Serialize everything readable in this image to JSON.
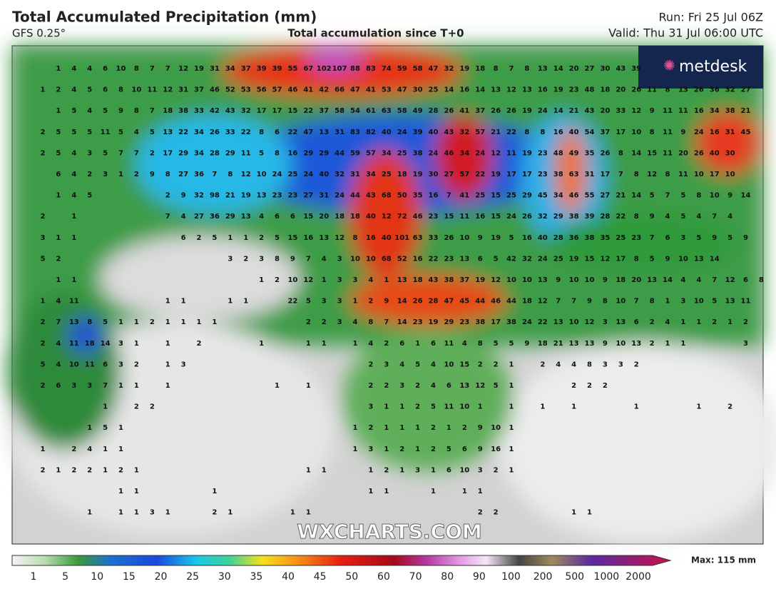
{
  "header": {
    "title": "Total Accumulated Precipitation (mm)",
    "model": "GFS 0.25°",
    "subtitle": "Total accumulation since T+0",
    "run": "Run: Fri 25 Jul 06Z",
    "valid": "Valid: Thu 31 Jul 06:00 UTC"
  },
  "logo": "metdesk",
  "watermark": "WXCHARTS.COM",
  "map_values": [
    [
      null,
      1,
      4,
      4,
      6,
      10,
      8,
      7,
      7,
      12,
      19,
      31,
      34,
      37,
      39,
      39,
      55,
      67,
      102,
      107,
      88,
      83,
      74,
      59,
      58,
      47,
      32,
      19,
      18,
      8,
      7,
      8,
      13,
      14,
      20,
      27,
      30,
      43,
      39
    ],
    [
      1,
      2,
      4,
      5,
      6,
      8,
      10,
      11,
      12,
      31,
      37,
      46,
      52,
      53,
      56,
      57,
      46,
      41,
      42,
      66,
      47,
      41,
      53,
      47,
      30,
      25,
      14,
      16,
      14,
      13,
      12,
      13,
      16,
      19,
      23,
      48,
      18,
      20,
      26,
      11,
      8,
      13,
      26,
      36,
      32,
      27
    ],
    [
      null,
      1,
      5,
      4,
      5,
      9,
      8,
      7,
      18,
      38,
      33,
      42,
      43,
      32,
      17,
      17,
      15,
      22,
      37,
      58,
      54,
      61,
      63,
      58,
      49,
      28,
      26,
      41,
      37,
      26,
      26,
      19,
      24,
      14,
      21,
      43,
      20,
      33,
      12,
      9,
      11,
      11,
      16,
      34,
      38,
      21
    ],
    [
      2,
      5,
      5,
      5,
      11,
      5,
      4,
      5,
      13,
      22,
      34,
      26,
      33,
      22,
      8,
      6,
      22,
      47,
      13,
      31,
      83,
      82,
      40,
      24,
      39,
      40,
      43,
      32,
      57,
      21,
      22,
      8,
      8,
      16,
      40,
      54,
      37,
      17,
      10,
      8,
      11,
      9,
      24,
      16,
      31,
      45
    ],
    [
      2,
      5,
      4,
      3,
      5,
      7,
      7,
      2,
      17,
      29,
      34,
      28,
      29,
      11,
      5,
      8,
      16,
      29,
      29,
      44,
      59,
      57,
      34,
      25,
      38,
      24,
      46,
      34,
      24,
      12,
      11,
      19,
      23,
      48,
      49,
      35,
      26,
      8,
      14,
      15,
      11,
      20,
      26,
      40,
      30
    ],
    [
      null,
      6,
      4,
      2,
      3,
      1,
      2,
      9,
      8,
      27,
      36,
      7,
      8,
      12,
      10,
      24,
      25,
      24,
      40,
      32,
      31,
      34,
      25,
      18,
      19,
      30,
      27,
      57,
      22,
      19,
      17,
      17,
      23,
      38,
      63,
      31,
      17,
      7,
      8,
      12,
      8,
      11,
      10,
      17,
      10
    ],
    [
      null,
      1,
      4,
      5,
      null,
      null,
      null,
      null,
      2,
      9,
      32,
      98,
      21,
      19,
      13,
      23,
      23,
      27,
      31,
      24,
      44,
      43,
      68,
      50,
      35,
      16,
      7,
      41,
      25,
      15,
      25,
      29,
      45,
      34,
      46,
      55,
      27,
      21,
      14,
      5,
      7,
      5,
      8,
      10,
      9,
      14
    ],
    [
      2,
      null,
      1,
      null,
      null,
      null,
      null,
      null,
      7,
      4,
      27,
      36,
      29,
      13,
      4,
      6,
      6,
      15,
      20,
      18,
      18,
      40,
      12,
      72,
      46,
      23,
      15,
      11,
      16,
      15,
      24,
      26,
      32,
      29,
      38,
      39,
      28,
      22,
      8,
      9,
      4,
      5,
      4,
      7,
      4
    ],
    [
      3,
      1,
      1,
      null,
      null,
      null,
      null,
      null,
      null,
      6,
      2,
      5,
      1,
      1,
      2,
      5,
      15,
      16,
      13,
      12,
      8,
      16,
      40,
      101,
      63,
      33,
      26,
      10,
      9,
      19,
      5,
      16,
      40,
      28,
      36,
      38,
      35,
      25,
      23,
      7,
      6,
      3,
      5,
      9,
      5,
      9
    ],
    [
      5,
      2,
      null,
      null,
      null,
      null,
      null,
      null,
      null,
      null,
      null,
      null,
      3,
      2,
      3,
      8,
      9,
      7,
      4,
      3,
      10,
      10,
      68,
      52,
      16,
      22,
      23,
      13,
      6,
      5,
      42,
      32,
      24,
      25,
      19,
      15,
      12,
      17,
      8,
      5,
      9,
      10,
      13,
      14
    ],
    [
      null,
      1,
      1,
      null,
      null,
      null,
      null,
      null,
      null,
      null,
      null,
      null,
      null,
      null,
      1,
      2,
      10,
      12,
      1,
      3,
      3,
      4,
      1,
      13,
      18,
      43,
      38,
      37,
      19,
      12,
      10,
      10,
      13,
      9,
      10,
      10,
      9,
      18,
      20,
      13,
      14,
      4,
      4,
      7,
      12,
      6,
      8
    ],
    [
      1,
      4,
      11,
      null,
      null,
      null,
      null,
      null,
      1,
      1,
      null,
      null,
      1,
      1,
      null,
      null,
      22,
      5,
      3,
      3,
      1,
      2,
      9,
      14,
      26,
      28,
      47,
      45,
      44,
      46,
      44,
      18,
      12,
      7,
      7,
      9,
      8,
      10,
      7,
      8,
      1,
      3,
      10,
      5,
      13,
      11
    ],
    [
      2,
      7,
      13,
      8,
      5,
      1,
      1,
      2,
      1,
      1,
      1,
      1,
      null,
      null,
      null,
      null,
      null,
      2,
      2,
      3,
      4,
      8,
      7,
      14,
      23,
      19,
      29,
      23,
      38,
      17,
      38,
      24,
      22,
      13,
      10,
      12,
      3,
      13,
      6,
      2,
      4,
      1,
      1,
      2,
      1,
      2
    ],
    [
      2,
      4,
      11,
      18,
      14,
      3,
      1,
      null,
      1,
      null,
      2,
      null,
      null,
      null,
      1,
      null,
      null,
      1,
      1,
      null,
      1,
      4,
      2,
      6,
      1,
      6,
      11,
      4,
      8,
      5,
      5,
      9,
      18,
      21,
      13,
      13,
      9,
      10,
      13,
      2,
      1,
      1,
      null,
      null,
      null,
      3
    ],
    [
      5,
      4,
      10,
      11,
      6,
      3,
      2,
      null,
      1,
      3,
      null,
      null,
      null,
      null,
      null,
      null,
      null,
      null,
      null,
      null,
      null,
      2,
      3,
      4,
      5,
      4,
      10,
      15,
      2,
      2,
      1,
      null,
      2,
      4,
      4,
      8,
      3,
      3,
      2
    ],
    [
      2,
      6,
      3,
      3,
      7,
      1,
      1,
      null,
      1,
      null,
      null,
      null,
      null,
      null,
      null,
      1,
      null,
      1,
      null,
      null,
      null,
      2,
      2,
      3,
      2,
      4,
      6,
      13,
      12,
      5,
      1,
      null,
      null,
      null,
      2,
      2,
      2
    ],
    [
      null,
      null,
      null,
      null,
      1,
      null,
      2,
      2,
      null,
      null,
      null,
      null,
      null,
      null,
      null,
      null,
      null,
      null,
      null,
      null,
      null,
      3,
      1,
      1,
      2,
      5,
      11,
      10,
      1,
      null,
      1,
      null,
      1,
      null,
      1,
      null,
      null,
      null,
      1,
      null,
      null,
      null,
      1,
      null,
      2
    ],
    [
      null,
      null,
      null,
      1,
      5,
      1,
      null,
      null,
      null,
      null,
      null,
      null,
      null,
      null,
      null,
      null,
      null,
      null,
      null,
      null,
      1,
      2,
      1,
      1,
      1,
      2,
      1,
      2,
      9,
      10,
      1
    ],
    [
      1,
      null,
      2,
      4,
      1,
      1,
      null,
      null,
      null,
      null,
      null,
      null,
      null,
      null,
      null,
      null,
      null,
      null,
      null,
      null,
      1,
      3,
      1,
      2,
      1,
      2,
      5,
      6,
      9,
      16,
      1
    ],
    [
      2,
      1,
      2,
      2,
      1,
      2,
      1,
      null,
      null,
      null,
      null,
      null,
      null,
      null,
      null,
      null,
      null,
      1,
      1,
      null,
      null,
      1,
      2,
      1,
      3,
      1,
      6,
      10,
      3,
      2,
      1
    ],
    [
      null,
      null,
      null,
      null,
      null,
      1,
      1,
      null,
      null,
      null,
      null,
      1,
      null,
      null,
      null,
      null,
      null,
      null,
      null,
      null,
      null,
      1,
      1,
      null,
      null,
      1,
      null,
      1,
      1
    ],
    [
      null,
      null,
      null,
      1,
      null,
      1,
      1,
      3,
      1,
      null,
      null,
      2,
      1,
      null,
      null,
      null,
      1,
      1,
      null,
      null,
      null,
      null,
      null,
      null,
      null,
      null,
      null,
      null,
      2,
      2,
      null,
      null,
      null,
      null,
      1,
      1
    ]
  ],
  "colorbar": {
    "labels": [
      1,
      5,
      10,
      15,
      20,
      25,
      30,
      35,
      40,
      45,
      50,
      60,
      70,
      80,
      90,
      100,
      200,
      500,
      1000,
      2000
    ],
    "max_label": "Max: 115 mm"
  }
}
